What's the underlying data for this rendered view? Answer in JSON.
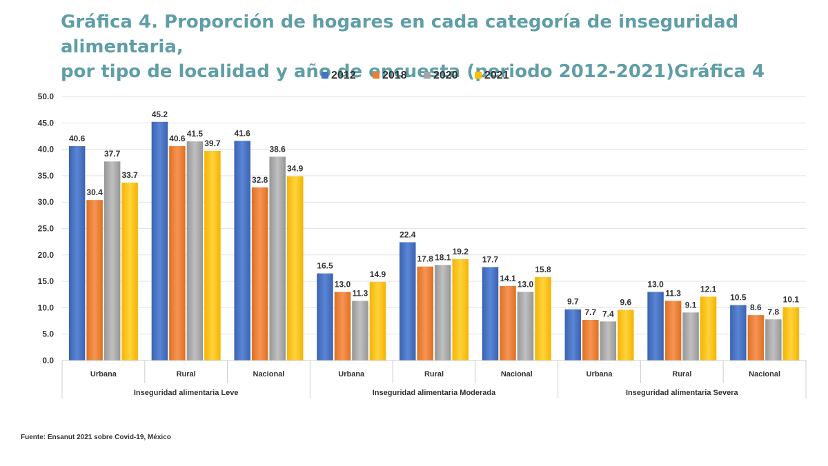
{
  "title_line1": "Gráfica 4. Proporción de hogares en cada categoría de inseguridad alimentaria,",
  "title_line2": "por tipo de localidad y año de encuesta (periodo 2012-2021)Gráfica 4",
  "source": "Fuente: Ensanut 2021 sobre Covid-19, México",
  "colors": {
    "2012": "#4472c4",
    "2018": "#ed7d31",
    "2020": "#a5a5a5",
    "2021": "#ffc000"
  },
  "chart_data": {
    "type": "bar",
    "title": "Gráfica 4. Proporción de hogares en cada categoría de inseguridad alimentaria, por tipo de localidad y año de encuesta (periodo 2012-2021)Gráfica 4",
    "legend_position": "top",
    "grid": true,
    "ylim": [
      0,
      50
    ],
    "yticks": [
      "0.0",
      "5.0",
      "10.0",
      "15.0",
      "20.0",
      "25.0",
      "30.0",
      "35.0",
      "40.0",
      "45.0",
      "50.0"
    ],
    "groups": [
      {
        "label": "Inseguridad alimentaria Leve",
        "categories": [
          "Urbana",
          "Rural",
          "Nacional"
        ]
      },
      {
        "label": "Inseguridad alimentaria Moderada",
        "categories": [
          "Urbana",
          "Rural",
          "Nacional"
        ]
      },
      {
        "label": "Inseguridad alimentaria Severa",
        "categories": [
          "Urbana",
          "Rural",
          "Nacional"
        ]
      }
    ],
    "series": [
      {
        "name": "2012",
        "values": [
          40.6,
          45.2,
          41.6,
          16.5,
          22.4,
          17.7,
          9.7,
          13.0,
          10.5
        ],
        "labels": [
          "40.6",
          "45.2",
          "41.6",
          "16.5",
          "22.4",
          "17.7",
          "9.7",
          "13.0",
          "10.5"
        ]
      },
      {
        "name": "2018",
        "values": [
          30.4,
          40.6,
          32.8,
          13.0,
          17.8,
          14.1,
          7.7,
          11.3,
          8.6
        ],
        "labels": [
          "30.4",
          "40.6",
          "32.8",
          "13.0",
          "17.8",
          "14.1",
          "7.7",
          "11.3",
          "8.6"
        ]
      },
      {
        "name": "2020",
        "values": [
          37.7,
          41.5,
          38.6,
          11.3,
          18.1,
          13.0,
          7.4,
          9.1,
          7.8
        ],
        "labels": [
          "37.7",
          "41.5",
          "38.6",
          "11.3",
          "18.1",
          "13.0",
          "7.4",
          "9.1",
          "7.8"
        ]
      },
      {
        "name": "2021",
        "values": [
          33.7,
          39.7,
          34.9,
          14.9,
          19.2,
          15.8,
          9.6,
          12.1,
          10.1
        ],
        "labels": [
          "33.7",
          "39.7",
          "34.9",
          "14.9",
          "19.2",
          "15.8",
          "9.6",
          "12.1",
          "10.1"
        ]
      }
    ]
  }
}
